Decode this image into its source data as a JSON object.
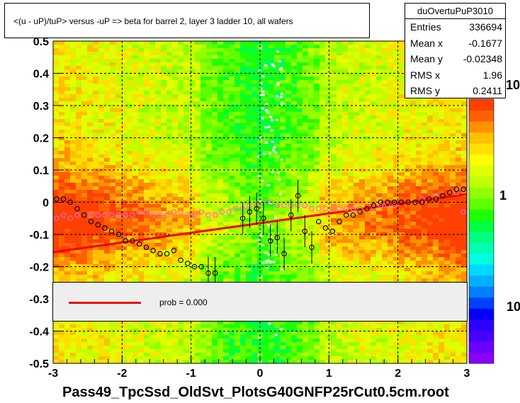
{
  "title": "<(u - uP)/tuP> versus  -uP => beta for barrel 2, layer 3 ladder 10, all wafers",
  "footer": "Pass49_TpcSsd_OldSvt_PlotsG40GNFP25rCut0.5cm.root",
  "stats": {
    "name": "duOvertuPuP3010",
    "rows": [
      {
        "label": "Entries",
        "value": "336694"
      },
      {
        "label": "Mean x",
        "value": "-0.1677"
      },
      {
        "label": "Mean y",
        "value": "-0.02348"
      },
      {
        "label": "RMS x",
        "value": "1.96"
      },
      {
        "label": "RMS y",
        "value": "0.2411"
      }
    ]
  },
  "legend": {
    "label": "prob = 0.000",
    "color": "#ee0000"
  },
  "colorbar": {
    "labels": [
      "10",
      "1",
      "10"
    ],
    "colors": [
      "#8800ff",
      "#6a00ff",
      "#4800ff",
      "#2a00ff",
      "#0000ff",
      "#0040ff",
      "#0080ff",
      "#00b0ff",
      "#00d8ff",
      "#00ffe0",
      "#00ffb0",
      "#00ff80",
      "#00ff40",
      "#20ff00",
      "#60ff00",
      "#90ff00",
      "#c0ff00",
      "#e0ff00",
      "#ffff00",
      "#ffe000",
      "#ffc000",
      "#ff9000",
      "#ff6000",
      "#ff4000"
    ]
  },
  "chart_data": {
    "type": "heatmap",
    "xlim": [
      -3,
      3
    ],
    "ylim": [
      -0.5,
      0.5
    ],
    "x_ticks": [
      "-3",
      "-2",
      "-1",
      "0",
      "1",
      "2",
      "3"
    ],
    "y_ticks": [
      "-0.5",
      "-0.4",
      "-0.3",
      "-0.2",
      "-0.1",
      "0",
      "0.1",
      "0.2",
      "0.3",
      "0.4",
      "0.5"
    ],
    "grid": true,
    "fit_line": {
      "x": [
        -3,
        3
      ],
      "y": [
        -0.155,
        0.025
      ],
      "color": "#ee0000"
    },
    "profile_black": {
      "x": [
        -2.95,
        -2.85,
        -2.75,
        -2.65,
        -2.55,
        -2.45,
        -2.35,
        -2.25,
        -2.15,
        -2.05,
        -1.95,
        -1.85,
        -1.75,
        -1.65,
        -1.55,
        -1.45,
        -1.35,
        -1.25,
        -1.15,
        -1.05,
        -0.95,
        -0.85,
        -0.75,
        -0.65,
        -0.25,
        -0.15,
        -0.05,
        0.05,
        0.15,
        0.25,
        0.35,
        0.45,
        0.55,
        0.65,
        0.75,
        0.85,
        0.95,
        1.05,
        1.15,
        1.25,
        1.35,
        1.45,
        1.55,
        1.65,
        1.75,
        1.85,
        1.95,
        2.05,
        2.15,
        2.25,
        2.35,
        2.45,
        2.55,
        2.65,
        2.75,
        2.85,
        2.95
      ],
      "y": [
        0.01,
        0.01,
        0.0,
        -0.02,
        -0.04,
        -0.06,
        -0.07,
        -0.08,
        -0.09,
        -0.1,
        -0.12,
        -0.12,
        -0.13,
        -0.14,
        -0.15,
        -0.16,
        -0.16,
        -0.15,
        -0.18,
        -0.19,
        -0.2,
        -0.2,
        -0.22,
        -0.22,
        -0.05,
        -0.03,
        -0.02,
        -0.05,
        -0.12,
        -0.11,
        -0.16,
        -0.04,
        0.02,
        -0.09,
        -0.14,
        -0.06,
        -0.08,
        -0.09,
        -0.06,
        -0.04,
        -0.04,
        -0.03,
        -0.02,
        -0.01,
        0.0,
        0.0,
        0.0,
        0.0,
        0.0,
        0.0,
        0.0,
        0.01,
        0.01,
        0.02,
        0.03,
        0.04,
        0.04
      ]
    },
    "profile_pink": {
      "x": [
        -2.95,
        -2.85,
        -2.75,
        -2.65,
        -2.55,
        -2.45,
        -2.35,
        -2.25,
        -2.15,
        -2.05,
        -1.95,
        -1.85,
        -1.75,
        -1.65,
        -1.55,
        -1.45,
        -1.35,
        -1.25,
        -1.15,
        -1.05,
        -0.95,
        -0.85,
        -0.75,
        -0.65,
        -0.55,
        -0.45,
        -0.35,
        -0.25,
        -0.15,
        -0.05,
        0.05,
        0.15,
        0.25,
        0.35,
        0.45,
        0.55,
        0.65,
        0.75,
        0.85,
        0.95,
        1.05,
        1.15,
        1.25,
        1.35,
        1.45,
        1.55,
        1.65,
        1.75,
        1.85,
        1.95,
        2.05,
        2.15,
        2.25,
        2.35,
        2.45,
        2.55,
        2.65,
        2.75,
        2.85,
        2.95
      ],
      "y": [
        -0.05,
        -0.04,
        -0.05,
        -0.04,
        -0.04,
        -0.04,
        -0.04,
        -0.04,
        -0.04,
        -0.04,
        -0.04,
        -0.04,
        -0.03,
        -0.03,
        -0.04,
        -0.04,
        -0.04,
        -0.03,
        -0.03,
        -0.04,
        -0.04,
        -0.03,
        -0.04,
        -0.04,
        -0.03,
        -0.03,
        -0.02,
        -0.02,
        -0.01,
        -0.01,
        0.0,
        0.0,
        -0.01,
        -0.01,
        -0.01,
        -0.01,
        -0.01,
        -0.02,
        -0.02,
        -0.02,
        -0.02,
        -0.02,
        -0.02,
        -0.02,
        -0.02,
        -0.02,
        -0.02,
        -0.01,
        -0.01,
        -0.01,
        0.0,
        0.0,
        0.0,
        0.01,
        0.01,
        0.02,
        0.02,
        0.03,
        0.03,
        -0.03
      ]
    }
  }
}
